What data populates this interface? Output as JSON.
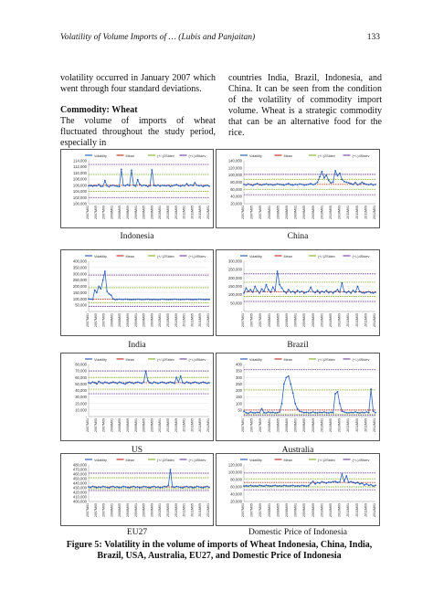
{
  "header": {
    "title": "Volatility of Volume Imports of … (Lubis and Panjaitan)",
    "page": "133"
  },
  "left": {
    "para1": "volatility occurred in January 2007 which went through four standard deviations.",
    "heading": "Commodity: Wheat",
    "para2": "The volume of imports of wheat fluctuated throughout the study period, especially in"
  },
  "right": {
    "para1": "countries India, Brazil, Indonesia, and China. It can be seen from the condition of the volatility of commodity import volume. Wheat is a strategic commodity that can be an alternative food for the rice."
  },
  "legend": {
    "volatility": "Volatility",
    "mean": "Mean",
    "sd2": "(+/-)2Stdev",
    "sd4": "(+/-)4Stdev"
  },
  "colors": {
    "volatility": "#2e62b8",
    "mean": "#c0392b",
    "sd2": "#8fb83a",
    "sd4": "#7b4fa3"
  },
  "x_labels": [
    "2007M01",
    "2007M05",
    "2007M09",
    "2008M01",
    "2008M05",
    "2008M09",
    "2009M01",
    "2009M05",
    "2009M09",
    "2010M01",
    "2010M05",
    "2010M09",
    "2011M01",
    "2011M05",
    "2011M09",
    "2012M01"
  ],
  "chart_data": [
    {
      "id": "indonesia",
      "label": "Indonesia",
      "type": "line",
      "yticks": [
        "100,000",
        "102,000",
        "104,000",
        "106,000",
        "108,000",
        "110,000",
        "112,000",
        "114,000"
      ],
      "ylim": [
        100000,
        114000
      ],
      "mean": 106000,
      "sd2": [
        104000,
        109500
      ],
      "sd4": [
        102000,
        112800
      ],
      "values": [
        105800,
        105900,
        105700,
        105900,
        105800,
        106200,
        105600,
        105700,
        107500,
        105800,
        105500,
        105900,
        106000,
        105800,
        105700,
        105600,
        111200,
        106000,
        105800,
        106200,
        105900,
        110900,
        106000,
        105700,
        107800,
        106300,
        105800,
        106000,
        105900,
        105600,
        105800,
        111000,
        105900,
        105800,
        106100,
        105700,
        106000,
        105900,
        105800,
        106000,
        105600,
        105800,
        106000,
        106200,
        105900,
        105700,
        106000,
        105800,
        106500,
        105900,
        106100,
        105900,
        106800,
        106000,
        105800,
        106000,
        105600,
        105900,
        106000,
        105700
      ]
    },
    {
      "id": "china",
      "label": "China",
      "type": "line",
      "yticks": [
        "20,000",
        "40,000",
        "60,000",
        "80,000",
        "100,000",
        "120,000",
        "140,000"
      ],
      "ylim": [
        20000,
        140000
      ],
      "mean": 74000,
      "sd2": [
        60000,
        88000
      ],
      "sd4": [
        45000,
        102000
      ],
      "values": [
        74000,
        72000,
        75000,
        73000,
        71000,
        74000,
        76000,
        73000,
        72000,
        74000,
        75000,
        73000,
        74000,
        72000,
        73000,
        75000,
        74000,
        73000,
        72000,
        74000,
        76000,
        73000,
        72000,
        74000,
        73000,
        75000,
        74000,
        72000,
        73000,
        74000,
        76000,
        73000,
        75000,
        80000,
        95000,
        110000,
        92000,
        100000,
        85000,
        78000,
        80000,
        112000,
        98000,
        105000,
        88000,
        82000,
        80000,
        78000,
        76000,
        74000,
        79000,
        73000,
        75000,
        80000,
        76000,
        74000,
        73000,
        75000,
        72000,
        74000
      ]
    },
    {
      "id": "india",
      "label": "India",
      "type": "line",
      "yticks": [
        "-",
        "50,000",
        "100,000",
        "150,000",
        "200,000",
        "250,000",
        "300,000",
        "350,000",
        "400,000"
      ],
      "ylim": [
        0,
        400000
      ],
      "mean": 98000,
      "sd2": [
        70000,
        190000
      ],
      "sd4": [
        40000,
        290000
      ],
      "values": [
        100000,
        98000,
        96000,
        170000,
        150000,
        200000,
        180000,
        250000,
        320000,
        160000,
        140000,
        130000,
        100000,
        95000,
        96000,
        98000,
        97000,
        96000,
        98000,
        97000,
        96000,
        95000,
        97000,
        96000,
        98000,
        97000,
        95000,
        96000,
        97000,
        98000,
        96000,
        95000,
        97000,
        96000,
        95000,
        96000,
        98000,
        97000,
        96000,
        95000,
        97000,
        96000,
        98000,
        97000,
        96000,
        95000,
        97000,
        96000,
        98000,
        97000,
        96000,
        95000,
        97000,
        96000,
        98000,
        97000,
        96000,
        95000,
        97000,
        96000
      ]
    },
    {
      "id": "brazil",
      "label": "Brazil",
      "type": "line",
      "yticks": [
        "-",
        "50,000",
        "100,000",
        "150,000",
        "200,000",
        "250,000",
        "300,000"
      ],
      "ylim": [
        0,
        300000
      ],
      "mean": 118000,
      "sd2": [
        90000,
        175000
      ],
      "sd4": [
        60000,
        225000
      ],
      "values": [
        110000,
        140000,
        120000,
        130000,
        115000,
        150000,
        125000,
        110000,
        135000,
        120000,
        160000,
        130000,
        115000,
        145000,
        125000,
        240000,
        160000,
        140000,
        120000,
        110000,
        130000,
        115000,
        120000,
        110000,
        125000,
        115000,
        120000,
        110000,
        115000,
        120000,
        145000,
        118000,
        112000,
        125000,
        110000,
        120000,
        115000,
        125000,
        112000,
        118000,
        110000,
        120000,
        130000,
        115000,
        170000,
        118000,
        112000,
        120000,
        110000,
        125000,
        115000,
        150000,
        118000,
        112000,
        110000,
        115000,
        118000,
        112000,
        110000,
        115000
      ]
    },
    {
      "id": "usa",
      "label": "US",
      "type": "line",
      "yticks": [
        "-",
        "10,000",
        "20,000",
        "30,000",
        "40,000",
        "50,000",
        "60,000",
        "70,000",
        "80,000"
      ],
      "ylim": [
        0,
        80000
      ],
      "mean": 52000,
      "sd2": [
        42000,
        60000
      ],
      "sd4": [
        35000,
        70000
      ],
      "values": [
        52000,
        51000,
        53000,
        52000,
        50000,
        54000,
        52000,
        51000,
        53000,
        52000,
        51000,
        52000,
        53000,
        52000,
        51000,
        53000,
        52000,
        51000,
        50000,
        52000,
        53000,
        52000,
        51000,
        52000,
        53000,
        52000,
        51000,
        53000,
        70000,
        55000,
        52000,
        51000,
        53000,
        52000,
        51000,
        52000,
        53000,
        52000,
        51000,
        52000,
        53000,
        52000,
        51000,
        60000,
        53000,
        62000,
        52000,
        51000,
        53000,
        52000,
        51000,
        52000,
        53000,
        52000,
        51000,
        52000,
        53000,
        52000,
        51000,
        52000
      ]
    },
    {
      "id": "australia",
      "label": "Australia",
      "type": "line",
      "yticks": [
        "-",
        "50",
        "100",
        "150",
        "200",
        "250",
        "300",
        "350",
        "400"
      ],
      "ylim": [
        0,
        400
      ],
      "mean": 50,
      "sd2": [
        20,
        205
      ],
      "sd4": [
        10,
        360
      ],
      "values": [
        40,
        30,
        25,
        35,
        30,
        28,
        32,
        30,
        60,
        30,
        28,
        35,
        30,
        32,
        28,
        30,
        35,
        100,
        250,
        300,
        310,
        250,
        180,
        100,
        60,
        40,
        35,
        30,
        32,
        28,
        30,
        35,
        30,
        28,
        32,
        30,
        35,
        30,
        28,
        32,
        30,
        175,
        190,
        100,
        40,
        35,
        30,
        28,
        32,
        30,
        35,
        30,
        28,
        32,
        30,
        35,
        30,
        210,
        40,
        30
      ]
    },
    {
      "id": "eu27",
      "label": "EU27",
      "type": "line",
      "yticks": [
        "400,000",
        "410,000",
        "420,000",
        "430,000",
        "440,000",
        "450,000",
        "460,000",
        "470,000",
        "480,000"
      ],
      "ylim": [
        400000,
        480000
      ],
      "mean": 432000,
      "sd2": [
        428000,
        452000
      ],
      "sd4": [
        424000,
        462000
      ],
      "values": [
        432000,
        431000,
        433000,
        432000,
        430000,
        432000,
        431000,
        433000,
        432000,
        431000,
        430000,
        432000,
        433000,
        431000,
        432000,
        430000,
        431000,
        433000,
        432000,
        431000,
        430000,
        432000,
        433000,
        431000,
        432000,
        430000,
        431000,
        433000,
        432000,
        431000,
        430000,
        432000,
        433000,
        431000,
        432000,
        430000,
        431000,
        433000,
        432000,
        435000,
        470000,
        432000,
        431000,
        433000,
        432000,
        431000,
        430000,
        432000,
        433000,
        431000,
        432000,
        430000,
        431000,
        433000,
        432000,
        431000,
        430000,
        432000,
        433000,
        431000
      ]
    },
    {
      "id": "domestic",
      "label": "Domestic Price of Indonesia",
      "type": "line",
      "yticks": [
        "20,000",
        "40,000",
        "60,000",
        "80,000",
        "100,000",
        "120,000"
      ],
      "ylim": [
        20000,
        120000
      ],
      "mean": 72000,
      "sd2": [
        60000,
        82000
      ],
      "sd4": [
        52000,
        98000
      ],
      "values": [
        62000,
        63000,
        62000,
        64000,
        62000,
        63000,
        62000,
        64000,
        63000,
        62000,
        64000,
        63000,
        62000,
        63000,
        64000,
        62000,
        63000,
        62000,
        64000,
        63000,
        62000,
        63000,
        64000,
        62000,
        63000,
        62000,
        64000,
        63000,
        62000,
        63000,
        70000,
        75000,
        68000,
        72000,
        70000,
        74000,
        72000,
        70000,
        73000,
        72000,
        74000,
        75000,
        72000,
        73000,
        95000,
        75000,
        90000,
        72000,
        74000,
        72000,
        70000,
        72000,
        68000,
        70000,
        65000,
        68000,
        64000,
        66000,
        62000,
        64000
      ]
    }
  ],
  "caption": {
    "label": "Figure 5:",
    "text": "Volatility in the volume of imports of Wheat Indonesia, China, India, Brazil, USA, Australia, EU27, and Domestic Price of Indonesia"
  }
}
